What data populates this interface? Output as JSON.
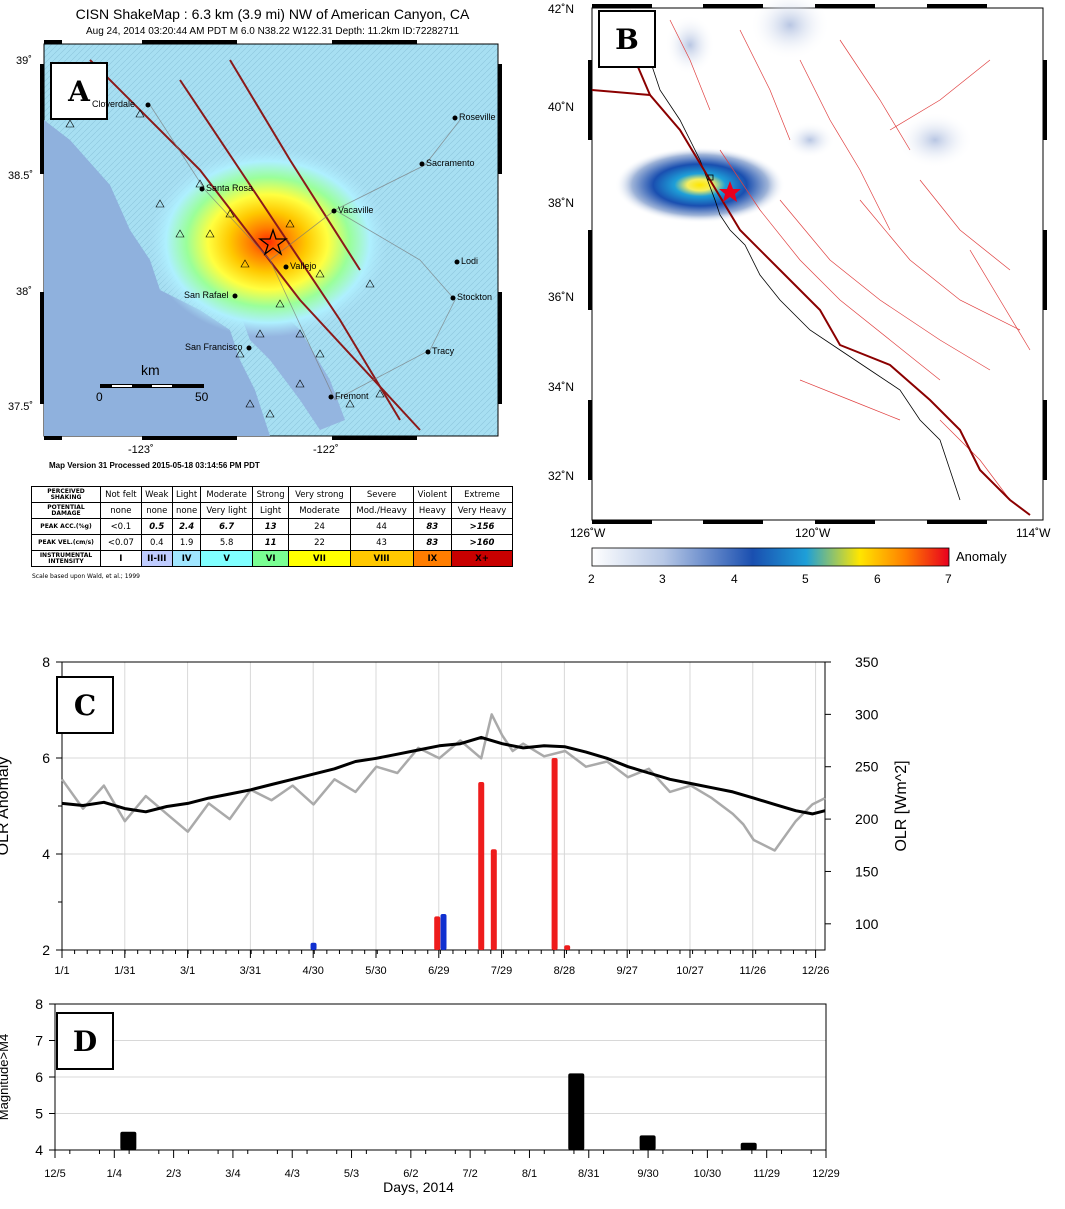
{
  "panelA": {
    "label": "A",
    "title": "CISN ShakeMap : 6.3 km (3.9 mi) NW of American Canyon, CA",
    "subtitle": "Aug 24, 2014 03:20:44 AM PDT   M 6.0   N38.22 W122.31   Depth: 11.2km   ID:72282711",
    "lat_ticks": [
      "39˚",
      "38.5˚",
      "38˚",
      "37.5˚"
    ],
    "lon_ticks": [
      "-123˚",
      "-122˚"
    ],
    "cities": [
      "Cloverdale",
      "Roseville",
      "Sacramento",
      "Santa Rosa",
      "Vacaville",
      "Vallejo",
      "Lodi",
      "San Rafael",
      "Stockton",
      "San Francisco",
      "Tracy",
      "Fremont"
    ],
    "scale_unit": "km",
    "scale_min": "0",
    "scale_max": "50",
    "footer": "Map Version 31 Processed 2015-05-18 03:14:56 PM PDT",
    "table": {
      "rows": [
        {
          "head": "PERCEIVED SHAKING",
          "cells": [
            "Not felt",
            "Weak",
            "Light",
            "Moderate",
            "Strong",
            "Very strong",
            "Severe",
            "Violent",
            "Extreme"
          ]
        },
        {
          "head": "POTENTIAL DAMAGE",
          "cells": [
            "none",
            "none",
            "none",
            "Very light",
            "Light",
            "Moderate",
            "Mod./Heavy",
            "Heavy",
            "Very Heavy"
          ]
        },
        {
          "head": "PEAK ACC.(%g)",
          "cells": [
            "<0.1",
            "0.5",
            "2.4",
            "6.7",
            "13",
            "24",
            "44",
            "83",
            ">156"
          ]
        },
        {
          "head": "PEAK VEL.(cm/s)",
          "cells": [
            "<0.07",
            "0.4",
            "1.9",
            "5.8",
            "11",
            "22",
            "43",
            "83",
            ">160"
          ]
        },
        {
          "head": "INSTRUMENTAL INTENSITY",
          "cells": [
            "I",
            "II-III",
            "IV",
            "V",
            "VI",
            "VII",
            "VIII",
            "IX",
            "X+"
          ]
        }
      ],
      "intensity_colors": [
        "#ffffff",
        "#bfccff",
        "#a0e6ff",
        "#80ffff",
        "#7aff93",
        "#ffff00",
        "#ffc800",
        "#ff7d00",
        "#c80000"
      ],
      "note": "Scale based upon Wald, et al.; 1999"
    }
  },
  "panelB": {
    "label": "B",
    "lat_ticks": [
      "42˚N",
      "40˚N",
      "38˚N",
      "36˚N",
      "34˚N",
      "32˚N"
    ],
    "lon_ticks": [
      "126˚W",
      "120˚W",
      "114˚W"
    ],
    "colorbar_ticks": [
      "2",
      "3",
      "4",
      "5",
      "6",
      "7"
    ],
    "colorbar_label": "Anomaly"
  },
  "chart_data": [
    {
      "type": "line",
      "panel": "C",
      "ylabel_left": "OLR Anomaly",
      "ylabel_right": "OLR [Wm^2]",
      "xticks": [
        "1/1",
        "1/31",
        "3/1",
        "3/31",
        "4/30",
        "5/30",
        "6/29",
        "7/29",
        "8/28",
        "9/27",
        "10/27",
        "11/26",
        "12/26"
      ],
      "ylim_left": [
        2,
        8
      ],
      "yticks_left": [
        "2",
        "4",
        "6",
        "8"
      ],
      "ylim_right": [
        75,
        350
      ],
      "yticks_right": [
        "100",
        "150",
        "200",
        "250",
        "300",
        "350"
      ],
      "series": [
        {
          "name": "",
          "color": "#aaaaaa",
          "axis": "right",
          "x": [
            0,
            10,
            20,
            30,
            40,
            50,
            60,
            70,
            80,
            90,
            100,
            110,
            120,
            130,
            140,
            150,
            160,
            170,
            180,
            190,
            200,
            205,
            210,
            215,
            220,
            230,
            240,
            250,
            260,
            270,
            280,
            290,
            300,
            310,
            320,
            325,
            330,
            340,
            350,
            358,
            364
          ],
          "y": [
            238,
            210,
            232,
            198,
            222,
            205,
            188,
            215,
            200,
            228,
            218,
            232,
            214,
            238,
            226,
            250,
            244,
            268,
            258,
            275,
            258,
            300,
            280,
            265,
            272,
            260,
            265,
            250,
            255,
            240,
            248,
            226,
            232,
            220,
            205,
            195,
            180,
            170,
            198,
            214,
            220
          ]
        },
        {
          "name": "",
          "color": "#000000",
          "axis": "right",
          "x": [
            0,
            10,
            20,
            30,
            40,
            50,
            60,
            70,
            80,
            90,
            100,
            110,
            120,
            130,
            140,
            150,
            160,
            170,
            180,
            190,
            200,
            210,
            220,
            230,
            240,
            250,
            260,
            270,
            280,
            290,
            300,
            310,
            320,
            330,
            340,
            350,
            358,
            364
          ],
          "y": [
            215,
            213,
            216,
            210,
            207,
            212,
            215,
            220,
            224,
            228,
            233,
            238,
            243,
            248,
            255,
            258,
            262,
            266,
            270,
            272,
            278,
            272,
            268,
            270,
            269,
            264,
            258,
            250,
            244,
            238,
            234,
            230,
            226,
            220,
            214,
            208,
            205,
            208
          ]
        }
      ],
      "bars": [
        {
          "color": "red",
          "x": [
            179,
            200,
            206,
            235,
            241
          ],
          "y": [
            2.7,
            5.5,
            4.1,
            6.0,
            2.1
          ]
        },
        {
          "color": "blue",
          "x": [
            120,
            182
          ],
          "y": [
            2.15,
            2.75
          ]
        }
      ]
    },
    {
      "type": "bar",
      "panel": "D",
      "ylabel": "Magnitude>M4",
      "xlabel": "Days, 2014",
      "xticks": [
        "12/5",
        "1/4",
        "2/3",
        "3/4",
        "4/3",
        "5/3",
        "6/2",
        "7/2",
        "8/1",
        "8/31",
        "9/30",
        "10/30",
        "11/29",
        "12/29"
      ],
      "ylim": [
        4,
        8
      ],
      "yticks": [
        "4",
        "5",
        "6",
        "7",
        "8"
      ],
      "x_days": [
        37,
        263,
        299,
        350
      ],
      "values": [
        4.5,
        6.1,
        4.4,
        4.2
      ]
    }
  ]
}
